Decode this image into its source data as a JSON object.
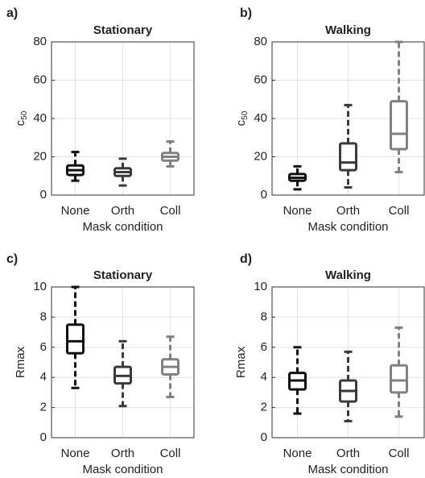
{
  "chart_data": [
    {
      "type": "box",
      "panel": "a)",
      "title": "Stationary",
      "xlabel": "Mask condition",
      "ylabel": "c",
      "ylabel_subscript": "50",
      "categories": [
        "None",
        "Orth",
        "Coll"
      ],
      "colors": [
        "#111111",
        "#3a3a3a",
        "#808080"
      ],
      "boxes": [
        {
          "whislo": 7.5,
          "q1": 10.5,
          "med": 13,
          "q3": 15.5,
          "whishi": 22.5
        },
        {
          "whislo": 5,
          "q1": 10,
          "med": 12,
          "q3": 14,
          "whishi": 19
        },
        {
          "whislo": 15,
          "q1": 18,
          "med": 20,
          "q3": 22,
          "whishi": 28
        }
      ],
      "ylim": [
        0,
        80
      ],
      "yticks": [
        0,
        20,
        40,
        60,
        80
      ],
      "grid": true
    },
    {
      "type": "box",
      "panel": "b)",
      "title": "Walking",
      "xlabel": "Mask condition",
      "ylabel": "c",
      "ylabel_subscript": "50",
      "categories": [
        "None",
        "Orth",
        "Coll"
      ],
      "colors": [
        "#111111",
        "#3a3a3a",
        "#808080"
      ],
      "boxes": [
        {
          "whislo": 3,
          "q1": 7.5,
          "med": 9,
          "q3": 11,
          "whishi": 15
        },
        {
          "whislo": 4,
          "q1": 13,
          "med": 17,
          "q3": 27,
          "whishi": 47
        },
        {
          "whislo": 12,
          "q1": 24,
          "med": 32,
          "q3": 49,
          "whishi": 80
        }
      ],
      "ylim": [
        0,
        80
      ],
      "yticks": [
        0,
        20,
        40,
        60,
        80
      ],
      "grid": true
    },
    {
      "type": "box",
      "panel": "c)",
      "title": "Stationary",
      "xlabel": "Mask condition",
      "ylabel": "Rmax",
      "categories": [
        "None",
        "Orth",
        "Coll"
      ],
      "colors": [
        "#111111",
        "#3a3a3a",
        "#808080"
      ],
      "boxes": [
        {
          "whislo": 3.3,
          "q1": 5.6,
          "med": 6.4,
          "q3": 7.5,
          "whishi": 10
        },
        {
          "whislo": 2.1,
          "q1": 3.6,
          "med": 4.1,
          "q3": 4.7,
          "whishi": 6.4
        },
        {
          "whislo": 2.7,
          "q1": 4.2,
          "med": 4.7,
          "q3": 5.2,
          "whishi": 6.7
        }
      ],
      "ylim": [
        0,
        10
      ],
      "yticks": [
        0,
        2,
        4,
        6,
        8,
        10
      ],
      "grid": true
    },
    {
      "type": "box",
      "panel": "d)",
      "title": "Walking",
      "xlabel": "Mask condition",
      "ylabel": "Rmax",
      "categories": [
        "None",
        "Orth",
        "Coll"
      ],
      "colors": [
        "#111111",
        "#3a3a3a",
        "#808080"
      ],
      "boxes": [
        {
          "whislo": 1.6,
          "q1": 3.2,
          "med": 3.8,
          "q3": 4.3,
          "whishi": 6
        },
        {
          "whislo": 1.1,
          "q1": 2.4,
          "med": 3.1,
          "q3": 3.8,
          "whishi": 5.7
        },
        {
          "whislo": 1.4,
          "q1": 3,
          "med": 3.8,
          "q3": 4.8,
          "whishi": 7.3
        }
      ],
      "ylim": [
        0,
        10
      ],
      "yticks": [
        0,
        2,
        4,
        6,
        8,
        10
      ],
      "grid": true
    }
  ]
}
